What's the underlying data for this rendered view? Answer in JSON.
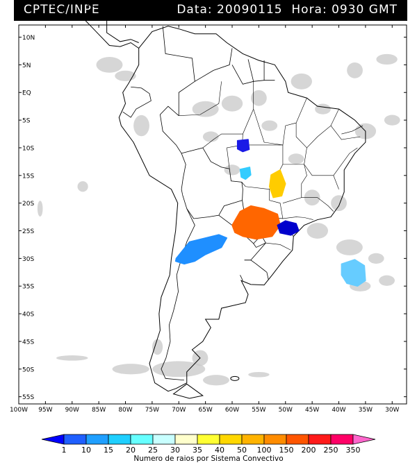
{
  "header": {
    "agency": "CPTEC/INPE",
    "datetime": "Data: 20090115  Hora: 0930 GMT"
  },
  "map": {
    "lat_labels": [
      "10N",
      "5N",
      "EQ",
      "5S",
      "10S",
      "15S",
      "20S",
      "25S",
      "30S",
      "35S",
      "40S",
      "45S",
      "50S",
      "55S"
    ],
    "lon_labels": [
      "100W",
      "95W",
      "90W",
      "85W",
      "80W",
      "75W",
      "70W",
      "65W",
      "60W",
      "55W",
      "50W",
      "45W",
      "40W",
      "35W",
      "30W"
    ],
    "lightning_clusters": [
      {
        "name": "dark-blue-cluster-north",
        "lon": -58,
        "lat": -9.5,
        "color": "#1a1ae6"
      },
      {
        "name": "cyan-cluster-center",
        "lon": -57.5,
        "lat": -14.5,
        "color": "#33ccff"
      },
      {
        "name": "yellow-cluster-goias",
        "lon": -51.5,
        "lat": -16.5,
        "color": "#ffcc00"
      },
      {
        "name": "orange-cluster-paraguay",
        "lon": -55.5,
        "lat": -23.5,
        "color": "#ff6600"
      },
      {
        "name": "dark-blue-cluster-saopaulo",
        "lon": -49.5,
        "lat": -24.5,
        "color": "#0000cc"
      },
      {
        "name": "blue-cluster-argentina",
        "lon": -66,
        "lat": -28.5,
        "color": "#1f8fff"
      },
      {
        "name": "cyan-cluster-atlantic",
        "lon": -37,
        "lat": -32.5,
        "color": "#66ccff"
      }
    ]
  },
  "legend": {
    "values": [
      "1",
      "10",
      "15",
      "20",
      "25",
      "30",
      "35",
      "40",
      "50",
      "100",
      "150",
      "200",
      "250",
      "350"
    ],
    "colors": [
      "#0000ff",
      "#1f5fff",
      "#1f9fff",
      "#1fcfff",
      "#66ffff",
      "#c8ffff",
      "#ffffcc",
      "#ffff33",
      "#ffd700",
      "#ffb300",
      "#ff8c00",
      "#ff5500",
      "#ff1a1a",
      "#ff0066",
      "#ff66cc"
    ],
    "title": "Numero de raios por Sistema Convectivo"
  }
}
